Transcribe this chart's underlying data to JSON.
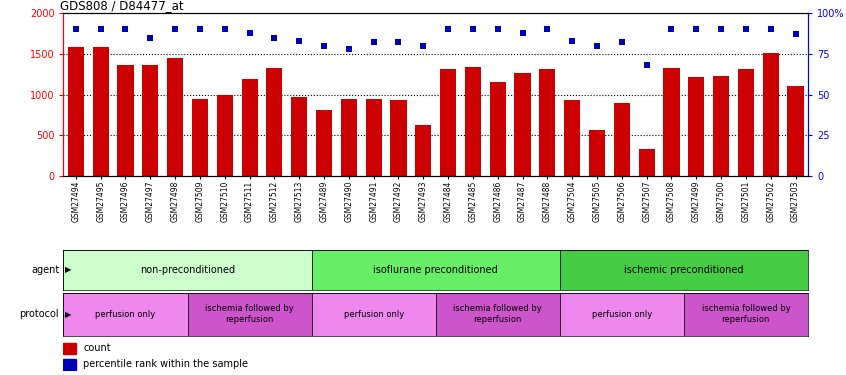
{
  "title": "GDS808 / D84477_at",
  "samples": [
    "GSM27494",
    "GSM27495",
    "GSM27496",
    "GSM27497",
    "GSM27498",
    "GSM27509",
    "GSM27510",
    "GSM27511",
    "GSM27512",
    "GSM27513",
    "GSM27489",
    "GSM27490",
    "GSM27491",
    "GSM27492",
    "GSM27493",
    "GSM27484",
    "GSM27485",
    "GSM27486",
    "GSM27487",
    "GSM27488",
    "GSM27504",
    "GSM27505",
    "GSM27506",
    "GSM27507",
    "GSM27508",
    "GSM27499",
    "GSM27500",
    "GSM27501",
    "GSM27502",
    "GSM27503"
  ],
  "counts": [
    1590,
    1590,
    1370,
    1370,
    1450,
    950,
    1000,
    1190,
    1330,
    970,
    810,
    950,
    950,
    930,
    630,
    1320,
    1340,
    1150,
    1260,
    1320,
    940,
    570,
    900,
    330,
    1330,
    1220,
    1230,
    1320,
    1510,
    1110
  ],
  "percentile_y_raw": [
    90,
    90,
    90,
    85,
    90,
    90,
    90,
    88,
    85,
    83,
    80,
    78,
    82,
    82,
    80,
    90,
    90,
    90,
    88,
    90,
    83,
    80,
    82,
    68,
    90,
    90,
    90,
    90,
    90,
    87
  ],
  "bar_color": "#cc0000",
  "dot_color": "#0000bb",
  "ylim": [
    0,
    2000
  ],
  "yticks": [
    0,
    500,
    1000,
    1500,
    2000
  ],
  "y2ticks": [
    0,
    25,
    50,
    75,
    100
  ],
  "y2ticklabels": [
    "0",
    "25",
    "50",
    "75",
    "100%"
  ],
  "agent_groups": [
    {
      "label": "non-preconditioned",
      "start": 0,
      "end": 10,
      "color": "#ccffcc"
    },
    {
      "label": "isoflurane preconditioned",
      "start": 10,
      "end": 20,
      "color": "#66ee66"
    },
    {
      "label": "ischemic preconditioned",
      "start": 20,
      "end": 30,
      "color": "#44cc44"
    }
  ],
  "protocol_groups": [
    {
      "label": "perfusion only",
      "start": 0,
      "end": 5,
      "color": "#ee88ee"
    },
    {
      "label": "ischemia followed by\nreperfusion",
      "start": 5,
      "end": 10,
      "color": "#cc55cc"
    },
    {
      "label": "perfusion only",
      "start": 10,
      "end": 15,
      "color": "#ee88ee"
    },
    {
      "label": "ischemia followed by\nreperfusion",
      "start": 15,
      "end": 20,
      "color": "#cc55cc"
    },
    {
      "label": "perfusion only",
      "start": 20,
      "end": 25,
      "color": "#ee88ee"
    },
    {
      "label": "ischemia followed by\nreperfusion",
      "start": 25,
      "end": 30,
      "color": "#cc55cc"
    }
  ]
}
